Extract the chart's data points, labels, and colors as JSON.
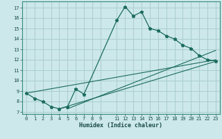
{
  "xlabel": "Humidex (Indice chaleur)",
  "bg_color": "#cce8ea",
  "grid_color": "#aacdd0",
  "line_color": "#1a6b5a",
  "xlim": [
    -0.5,
    23.5
  ],
  "ylim": [
    6.8,
    17.6
  ],
  "yticks": [
    7,
    8,
    9,
    10,
    11,
    12,
    13,
    14,
    15,
    16,
    17
  ],
  "xticks": [
    0,
    1,
    2,
    3,
    4,
    5,
    6,
    7,
    8,
    9,
    11,
    12,
    13,
    14,
    15,
    16,
    17,
    18,
    19,
    20,
    21,
    22,
    23
  ],
  "line1_x": [
    0,
    1,
    2,
    3,
    4,
    5,
    6,
    7,
    11,
    12,
    13,
    14,
    15,
    16,
    17,
    18,
    19,
    20,
    21,
    22,
    23
  ],
  "line1_y": [
    8.8,
    8.3,
    8.0,
    7.5,
    7.3,
    7.5,
    9.2,
    8.7,
    15.8,
    17.1,
    16.2,
    16.6,
    15.0,
    14.8,
    14.3,
    14.0,
    13.4,
    13.1,
    12.4,
    12.0,
    11.9
  ],
  "line2_x": [
    0,
    23
  ],
  "line2_y": [
    8.8,
    12.0
  ],
  "line3_x": [
    4,
    23
  ],
  "line3_y": [
    7.3,
    11.85
  ],
  "line4_x": [
    5,
    23
  ],
  "line4_y": [
    7.3,
    12.9
  ]
}
